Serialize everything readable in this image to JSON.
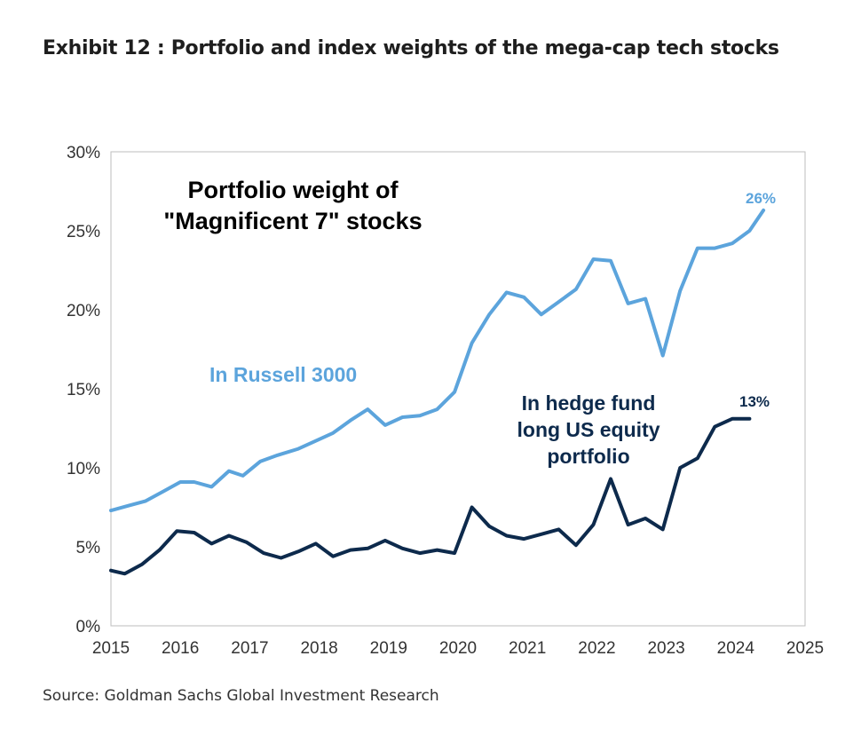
{
  "header": {
    "title": "Exhibit 12 : Portfolio and index weights of the mega-cap tech stocks"
  },
  "footer": {
    "source": "Source: Goldman Sachs Global Investment Research"
  },
  "chart_data": {
    "type": "line",
    "title": "Portfolio weight of",
    "title_line2": "\"Magnificent 7\" stocks",
    "xlabel": "",
    "ylabel": "",
    "xlim": [
      2015,
      2025
    ],
    "ylim": [
      0,
      30
    ],
    "x_ticks": [
      2015,
      2016,
      2017,
      2018,
      2019,
      2020,
      2021,
      2022,
      2023,
      2024,
      2025
    ],
    "x_tick_labels": [
      "2015",
      "2016",
      "2017",
      "2018",
      "2019",
      "2020",
      "2021",
      "2022",
      "2023",
      "2024",
      "2025"
    ],
    "y_ticks": [
      0,
      5,
      10,
      15,
      20,
      25,
      30
    ],
    "y_tick_labels": [
      "0%",
      "5%",
      "10%",
      "15%",
      "20%",
      "25%",
      "30%"
    ],
    "grid": false,
    "series": [
      {
        "name": "In Russell 3000",
        "color": "#5ca4dc",
        "end_label": "26%",
        "x": [
          2015.0,
          2015.25,
          2015.5,
          2015.75,
          2016.0,
          2016.2,
          2016.45,
          2016.7,
          2016.9,
          2017.15,
          2017.4,
          2017.7,
          2017.95,
          2018.2,
          2018.45,
          2018.7,
          2018.95,
          2019.2,
          2019.45,
          2019.7,
          2019.95,
          2020.2,
          2020.45,
          2020.7,
          2020.95,
          2021.2,
          2021.45,
          2021.7,
          2021.95,
          2022.2,
          2022.45,
          2022.7,
          2022.95,
          2023.2,
          2023.45,
          2023.7,
          2023.95,
          2024.2,
          2024.4
        ],
        "values": [
          7.3,
          7.6,
          7.9,
          8.5,
          9.1,
          9.1,
          8.8,
          9.8,
          9.5,
          10.4,
          10.8,
          11.2,
          11.7,
          12.2,
          13.0,
          13.7,
          12.7,
          13.2,
          13.3,
          13.7,
          14.8,
          17.9,
          19.7,
          21.1,
          20.8,
          19.7,
          20.5,
          21.3,
          23.2,
          23.1,
          20.4,
          20.7,
          17.1,
          21.2,
          23.9,
          23.9,
          24.2,
          25.0,
          26.3
        ]
      },
      {
        "name": "In hedge fund long US equity portfolio",
        "label_lines": [
          "In hedge fund",
          "long US equity",
          "portfolio"
        ],
        "color": "#0d2a4c",
        "end_label": "13%",
        "x": [
          2015.0,
          2015.2,
          2015.45,
          2015.7,
          2015.95,
          2016.2,
          2016.45,
          2016.7,
          2016.95,
          2017.2,
          2017.45,
          2017.7,
          2017.95,
          2018.2,
          2018.45,
          2018.7,
          2018.95,
          2019.2,
          2019.45,
          2019.7,
          2019.95,
          2020.2,
          2020.45,
          2020.7,
          2020.95,
          2021.2,
          2021.45,
          2021.7,
          2021.95,
          2022.2,
          2022.45,
          2022.7,
          2022.95,
          2023.2,
          2023.45,
          2023.7,
          2023.95,
          2024.2
        ],
        "values": [
          3.5,
          3.3,
          3.9,
          4.8,
          6.0,
          5.9,
          5.2,
          5.7,
          5.3,
          4.6,
          4.3,
          4.7,
          5.2,
          4.4,
          4.8,
          4.9,
          5.4,
          4.9,
          4.6,
          4.8,
          4.6,
          7.5,
          6.3,
          5.7,
          5.5,
          5.8,
          6.1,
          5.1,
          6.4,
          9.3,
          6.4,
          6.8,
          6.1,
          10.0,
          10.6,
          12.6,
          13.1,
          13.1
        ]
      }
    ]
  }
}
